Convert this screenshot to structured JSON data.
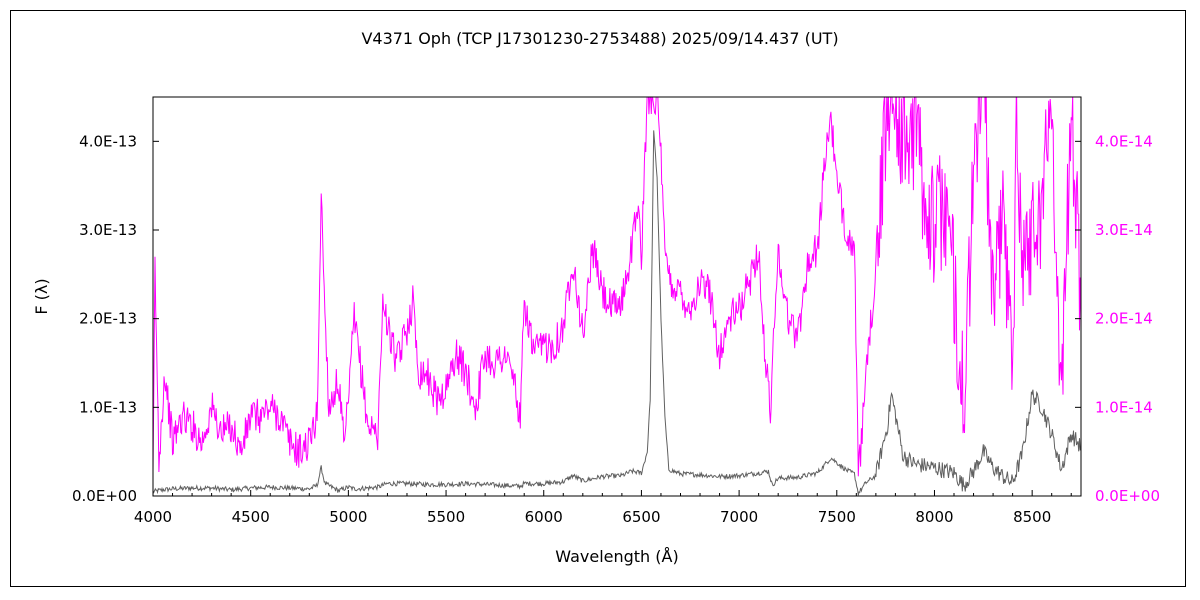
{
  "chart_data": {
    "type": "line",
    "title": "V4371 Oph (TCP J17301230-2753488)   2025/09/14.437 (UT)",
    "xlabel": "Wavelength (Å)",
    "ylabel": "F (λ)",
    "xlim": [
      4000,
      8750
    ],
    "ylim_left": [
      0,
      4.5e-13
    ],
    "ylim_right": [
      0,
      4.5e-14
    ],
    "x_ticks": [
      "4000",
      "4500",
      "5000",
      "5500",
      "6000",
      "6500",
      "7000",
      "7500",
      "8000",
      "8500"
    ],
    "y_ticks_left": [
      "0.0E+00",
      "1.0E-13",
      "2.0E-13",
      "3.0E-13",
      "4.0E-13"
    ],
    "y_ticks_right": [
      "0.0E+00",
      "1.0E-14",
      "2.0E-14",
      "3.0E-14",
      "4.0E-14"
    ],
    "grid": false,
    "colors": {
      "left_series": "#606060",
      "right_series": "#ff00ff",
      "right_axis": "#ff00ff",
      "frame": "#000000"
    },
    "series": [
      {
        "axis": "left",
        "color": "#606060",
        "points": [
          [
            4000,
            5e-15
          ],
          [
            4050,
            7e-15
          ],
          [
            4100,
            8e-15
          ],
          [
            4200,
            9e-15
          ],
          [
            4300,
            9e-15
          ],
          [
            4400,
            7e-15
          ],
          [
            4500,
            9e-15
          ],
          [
            4600,
            1e-14
          ],
          [
            4700,
            9e-15
          ],
          [
            4800,
            8e-15
          ],
          [
            4840,
            1.2e-14
          ],
          [
            4861,
            3.2e-14
          ],
          [
            4880,
            1.4e-14
          ],
          [
            4950,
            6e-15
          ],
          [
            5000,
            1e-14
          ],
          [
            5030,
            8e-15
          ],
          [
            5100,
            9e-15
          ],
          [
            5150,
            1e-14
          ],
          [
            5200,
            1.4e-14
          ],
          [
            5300,
            1.4e-14
          ],
          [
            5400,
            1.3e-14
          ],
          [
            5500,
            1.3e-14
          ],
          [
            5600,
            1.4e-14
          ],
          [
            5700,
            1.3e-14
          ],
          [
            5800,
            1.2e-14
          ],
          [
            5880,
            1.1e-14
          ],
          [
            5900,
            1.4e-14
          ],
          [
            6000,
            1.4e-14
          ],
          [
            6100,
            1.6e-14
          ],
          [
            6150,
            2.3e-14
          ],
          [
            6200,
            1.7e-14
          ],
          [
            6300,
            2.2e-14
          ],
          [
            6400,
            2.3e-14
          ],
          [
            6450,
            2.8e-14
          ],
          [
            6500,
            2.6e-14
          ],
          [
            6530,
            5e-14
          ],
          [
            6545,
            1.1e-13
          ],
          [
            6563,
            4.1e-13
          ],
          [
            6580,
            3.6e-13
          ],
          [
            6600,
            2e-13
          ],
          [
            6620,
            9e-14
          ],
          [
            6640,
            3e-14
          ],
          [
            6700,
            2.5e-14
          ],
          [
            6800,
            2.4e-14
          ],
          [
            6900,
            2.2e-14
          ],
          [
            7000,
            2.3e-14
          ],
          [
            7100,
            2.6e-14
          ],
          [
            7150,
            2.8e-14
          ],
          [
            7170,
            1.2e-14
          ],
          [
            7200,
            2e-14
          ],
          [
            7300,
            2.1e-14
          ],
          [
            7400,
            2.6e-14
          ],
          [
            7470,
            4.3e-14
          ],
          [
            7550,
            2.9e-14
          ],
          [
            7590,
            2.5e-14
          ],
          [
            7610,
            3e-15
          ],
          [
            7650,
            1.5e-14
          ],
          [
            7700,
            2.3e-14
          ],
          [
            7760,
            8e-14
          ],
          [
            7780,
            1.15e-13
          ],
          [
            7810,
            8e-14
          ],
          [
            7840,
            4.5e-14
          ],
          [
            7900,
            3.6e-14
          ],
          [
            8000,
            3.2e-14
          ],
          [
            8100,
            2.6e-14
          ],
          [
            8150,
            1.2e-14
          ],
          [
            8200,
            2.8e-14
          ],
          [
            8250,
            5e-14
          ],
          [
            8300,
            3.2e-14
          ],
          [
            8350,
            2.2e-14
          ],
          [
            8400,
            1.5e-14
          ],
          [
            8450,
            4.8e-14
          ],
          [
            8500,
            1.15e-13
          ],
          [
            8550,
            1e-13
          ],
          [
            8600,
            7e-14
          ],
          [
            8650,
            3e-14
          ],
          [
            8700,
            7e-14
          ],
          [
            8750,
            5.5e-14
          ]
        ]
      },
      {
        "axis": "right",
        "color": "#ff00ff",
        "points": [
          [
            4000,
            1e-15
          ],
          [
            4010,
            2.6e-14
          ],
          [
            4030,
            4e-15
          ],
          [
            4060,
            1.4e-14
          ],
          [
            4100,
            6e-15
          ],
          [
            4150,
            9e-15
          ],
          [
            4200,
            8e-15
          ],
          [
            4250,
            6e-15
          ],
          [
            4300,
            1e-14
          ],
          [
            4350,
            7e-15
          ],
          [
            4400,
            8e-15
          ],
          [
            4450,
            5e-15
          ],
          [
            4500,
            9e-15
          ],
          [
            4550,
            9e-15
          ],
          [
            4600,
            1e-14
          ],
          [
            4650,
            9e-15
          ],
          [
            4700,
            6e-15
          ],
          [
            4750,
            5e-15
          ],
          [
            4800,
            6e-15
          ],
          [
            4840,
            9e-15
          ],
          [
            4861,
            3.4e-14
          ],
          [
            4880,
            2.1e-14
          ],
          [
            4900,
            1e-14
          ],
          [
            4950,
            1.3e-14
          ],
          [
            4980,
            5e-15
          ],
          [
            5000,
            1.1e-14
          ],
          [
            5030,
            2e-14
          ],
          [
            5060,
            1.5e-14
          ],
          [
            5100,
            8e-15
          ],
          [
            5150,
            7e-15
          ],
          [
            5180,
            2.3e-14
          ],
          [
            5200,
            1.9e-14
          ],
          [
            5250,
            1.5e-14
          ],
          [
            5300,
            1.9e-14
          ],
          [
            5330,
            2.2e-14
          ],
          [
            5360,
            1.4e-14
          ],
          [
            5400,
            1.4e-14
          ],
          [
            5450,
            1.1e-14
          ],
          [
            5500,
            1.2e-14
          ],
          [
            5550,
            1.6e-14
          ],
          [
            5600,
            1.4e-14
          ],
          [
            5650,
            1e-14
          ],
          [
            5700,
            1.6e-14
          ],
          [
            5750,
            1.5e-14
          ],
          [
            5800,
            1.6e-14
          ],
          [
            5850,
            1.3e-14
          ],
          [
            5880,
            8e-15
          ],
          [
            5900,
            2.2e-14
          ],
          [
            5950,
            1.6e-14
          ],
          [
            6000,
            1.7e-14
          ],
          [
            6050,
            1.7e-14
          ],
          [
            6100,
            1.9e-14
          ],
          [
            6150,
            2.7e-14
          ],
          [
            6200,
            1.8e-14
          ],
          [
            6250,
            2.8e-14
          ],
          [
            6300,
            2.3e-14
          ],
          [
            6350,
            2.1e-14
          ],
          [
            6400,
            2.2e-14
          ],
          [
            6450,
            2.8e-14
          ],
          [
            6480,
            3.3e-14
          ],
          [
            6500,
            2.7e-14
          ],
          [
            6530,
            4.5e-14
          ],
          [
            6563,
            4.5e-14
          ],
          [
            6580,
            4.5e-14
          ],
          [
            6600,
            3.8e-14
          ],
          [
            6620,
            2.7e-14
          ],
          [
            6650,
            2.4e-14
          ],
          [
            6700,
            2.3e-14
          ],
          [
            6750,
            2.1e-14
          ],
          [
            6800,
            2.4e-14
          ],
          [
            6850,
            2.3e-14
          ],
          [
            6900,
            1.6e-14
          ],
          [
            6950,
            2e-14
          ],
          [
            7000,
            2.1e-14
          ],
          [
            7050,
            2.4e-14
          ],
          [
            7100,
            2.8e-14
          ],
          [
            7130,
            1.6e-14
          ],
          [
            7160,
            1e-14
          ],
          [
            7200,
            2.8e-14
          ],
          [
            7250,
            2e-14
          ],
          [
            7300,
            1.8e-14
          ],
          [
            7350,
            2.6e-14
          ],
          [
            7400,
            2.8e-14
          ],
          [
            7450,
            4e-14
          ],
          [
            7470,
            4.3e-14
          ],
          [
            7500,
            3.5e-14
          ],
          [
            7550,
            3e-14
          ],
          [
            7590,
            2.8e-14
          ],
          [
            7610,
            2e-15
          ],
          [
            7650,
            1.3e-14
          ],
          [
            7700,
            2.6e-14
          ],
          [
            7730,
            3.4e-14
          ],
          [
            7760,
            4.5e-14
          ],
          [
            7800,
            4.5e-14
          ],
          [
            7850,
            3.9e-14
          ],
          [
            7900,
            4.2e-14
          ],
          [
            7950,
            3.4e-14
          ],
          [
            8000,
            3e-14
          ],
          [
            8050,
            3.3e-14
          ],
          [
            8100,
            2.4e-14
          ],
          [
            8150,
            1e-14
          ],
          [
            8200,
            3.5e-14
          ],
          [
            8230,
            4.5e-14
          ],
          [
            8260,
            4.5e-14
          ],
          [
            8300,
            2e-14
          ],
          [
            8350,
            3.3e-14
          ],
          [
            8400,
            1.3e-14
          ],
          [
            8420,
            4.5e-14
          ],
          [
            8450,
            2.6e-14
          ],
          [
            8500,
            3e-14
          ],
          [
            8550,
            3.3e-14
          ],
          [
            8600,
            4.5e-14
          ],
          [
            8650,
            1e-14
          ],
          [
            8700,
            4.5e-14
          ],
          [
            8750,
            2e-14
          ]
        ]
      }
    ]
  }
}
